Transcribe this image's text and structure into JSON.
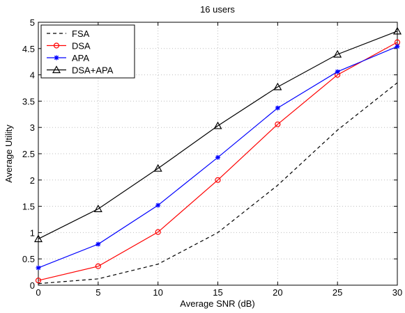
{
  "chart_data": {
    "type": "line",
    "title": "16 users",
    "xlabel": "Average SNR (dB)",
    "ylabel": "Average Utility",
    "x": [
      0,
      5,
      10,
      15,
      20,
      25,
      30
    ],
    "xlim": [
      0,
      30
    ],
    "ylim": [
      0,
      5
    ],
    "xticks": [
      "0",
      "5",
      "10",
      "15",
      "20",
      "25",
      "30"
    ],
    "yticks": [
      "0",
      "0.5",
      "1",
      "1.5",
      "2",
      "2.5",
      "3",
      "3.5",
      "4",
      "4.5",
      "5"
    ],
    "grid": true,
    "legend_position": "top-left",
    "series": [
      {
        "name": "FSA",
        "color": "#000000",
        "style": "dashed",
        "marker": "none",
        "values": [
          0.03,
          0.12,
          0.4,
          1.0,
          1.9,
          2.95,
          3.85
        ]
      },
      {
        "name": "DSA",
        "color": "#ff0000",
        "style": "solid",
        "marker": "circle",
        "values": [
          0.09,
          0.36,
          1.01,
          2.0,
          3.06,
          4.0,
          4.62
        ]
      },
      {
        "name": "APA",
        "color": "#0000ff",
        "style": "solid",
        "marker": "star",
        "values": [
          0.33,
          0.78,
          1.52,
          2.43,
          3.37,
          4.06,
          4.54
        ]
      },
      {
        "name": "DSA+APA",
        "color": "#000000",
        "style": "solid",
        "marker": "triangle",
        "values": [
          0.88,
          1.45,
          2.22,
          3.03,
          3.77,
          4.39,
          4.83
        ]
      }
    ]
  }
}
